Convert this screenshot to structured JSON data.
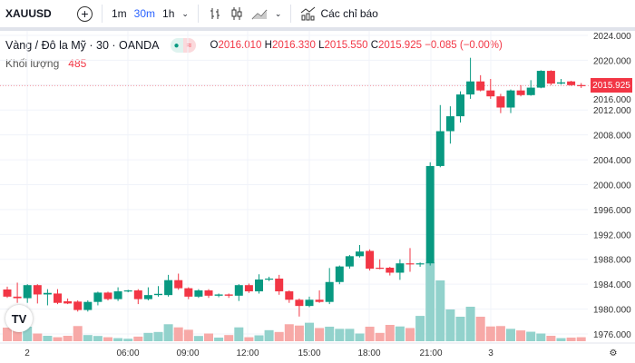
{
  "toolbar": {
    "symbol": "XAUUSD",
    "intervals": [
      "1m",
      "30m",
      "1h"
    ],
    "indicators_label": "Các chỉ báo"
  },
  "legend": {
    "title": "Vàng / Đô la Mỹ · 30 · OANDA",
    "open": "2016.010",
    "high": "2016.330",
    "low": "2015.550",
    "close": "2015.925",
    "change": "−0.085 (−0.00%)",
    "o": "O",
    "h": "H",
    "l": "L",
    "c": "C"
  },
  "volume": {
    "label": "Khối lượng",
    "value": "485"
  },
  "colors": {
    "up": "#089981",
    "down": "#f23645",
    "up_vol": "#92d2cc",
    "down_vol": "#f7a9a7"
  },
  "chart_data": {
    "type": "candlestick",
    "ylim": [
      1974,
      2026
    ],
    "y_ticks": [
      "2024.000",
      "2020.000",
      "2016.000",
      "2012.000",
      "2008.000",
      "2004.000",
      "2000.000",
      "1996.000",
      "1992.000",
      "1988.000",
      "1984.000",
      "1980.000",
      "1976.000"
    ],
    "x_ticks": [
      "2",
      "06:00",
      "09:00",
      "12:00",
      "15:00",
      "18:00",
      "21:00",
      "3"
    ],
    "last_price": "2015.925",
    "candles": [
      [
        1983.15,
        1983.6,
        1981.8,
        1982.0
      ],
      [
        1982.0,
        1984.25,
        1981.0,
        1981.75
      ],
      [
        1981.75,
        1984.0,
        1981.0,
        1983.85
      ],
      [
        1983.85,
        1984.0,
        1980.9,
        1982.35
      ],
      [
        1982.35,
        1983.2,
        1980.6,
        1982.6
      ],
      [
        1982.5,
        1983.2,
        1980.8,
        1981.0
      ],
      [
        1981.25,
        1981.7,
        1980.8,
        1980.9
      ],
      [
        1981.2,
        1981.4,
        1979.6,
        1979.85
      ],
      [
        1979.85,
        1981.4,
        1979.6,
        1981.15
      ],
      [
        1981.15,
        1982.8,
        1980.6,
        1982.65
      ],
      [
        1982.65,
        1982.8,
        1981.4,
        1981.6
      ],
      [
        1981.6,
        1983.5,
        1981.3,
        1982.85
      ],
      [
        1982.85,
        1983.1,
        1982.7,
        1983.0
      ],
      [
        1983.0,
        1983.2,
        1980.8,
        1981.6
      ],
      [
        1981.6,
        1983.5,
        1981.4,
        1982.25
      ],
      [
        1982.25,
        1983.7,
        1982.0,
        1982.45
      ],
      [
        1982.25,
        1985.5,
        1982.0,
        1984.65
      ],
      [
        1984.65,
        1985.7,
        1983.1,
        1983.35
      ],
      [
        1983.35,
        1983.5,
        1981.6,
        1982.0
      ],
      [
        1982.0,
        1983.2,
        1981.8,
        1983.0
      ],
      [
        1983.0,
        1983.2,
        1981.8,
        1982.15
      ],
      [
        1982.15,
        1982.5,
        1981.9,
        1982.35
      ],
      [
        1982.35,
        1982.5,
        1981.8,
        1982.15
      ],
      [
        1982.15,
        1984.0,
        1981.3,
        1983.85
      ],
      [
        1983.85,
        1984.1,
        1982.6,
        1982.85
      ],
      [
        1982.85,
        1985.6,
        1982.5,
        1984.75
      ],
      [
        1984.75,
        1985.2,
        1984.5,
        1984.9
      ],
      [
        1984.9,
        1985.5,
        1982.3,
        1982.85
      ],
      [
        1982.85,
        1983.0,
        1981.0,
        1981.5
      ],
      [
        1981.5,
        1981.7,
        1978.8,
        1980.5
      ],
      [
        1980.5,
        1982.0,
        1980.3,
        1981.5
      ],
      [
        1981.5,
        1983.0,
        1981.0,
        1981.15
      ],
      [
        1981.15,
        1986.6,
        1980.8,
        1984.35
      ],
      [
        1984.35,
        1987.0,
        1984.0,
        1986.85
      ],
      [
        1986.85,
        1988.7,
        1986.5,
        1988.5
      ],
      [
        1988.5,
        1990.3,
        1988.3,
        1989.25
      ],
      [
        1989.35,
        1989.6,
        1986.2,
        1986.5
      ],
      [
        1986.65,
        1988.0,
        1986.4,
        1986.5
      ],
      [
        1986.65,
        1986.8,
        1985.4,
        1985.85
      ],
      [
        1985.85,
        1988.0,
        1984.7,
        1987.35
      ],
      [
        1987.35,
        1989.8,
        1986.0,
        1987.2
      ],
      [
        1987.2,
        1987.5,
        1986.8,
        1987.35
      ],
      [
        1987.35,
        2003.6,
        1987.0,
        2003.0
      ],
      [
        2003.0,
        2012.8,
        2002.8,
        2008.6
      ],
      [
        2008.6,
        2012.6,
        2006.6,
        2011.0
      ],
      [
        2011.0,
        2015.0,
        2010.0,
        2014.5
      ],
      [
        2014.5,
        2020.4,
        2013.8,
        2016.6
      ],
      [
        2016.6,
        2017.6,
        2015.0,
        2015.15
      ],
      [
        2015.15,
        2017.0,
        2013.8,
        2014.2
      ],
      [
        2014.2,
        2014.6,
        2011.5,
        2012.4
      ],
      [
        2012.4,
        2015.3,
        2011.5,
        2015.15
      ],
      [
        2015.15,
        2016.0,
        2014.2,
        2014.4
      ],
      [
        2014.4,
        2016.8,
        2014.3,
        2015.6
      ],
      [
        2015.6,
        2018.4,
        2015.5,
        2018.3
      ],
      [
        2018.3,
        2018.4,
        2016.0,
        2016.25
      ],
      [
        2016.25,
        2017.0,
        2016.1,
        2016.45
      ],
      [
        2016.6,
        2016.7,
        2015.9,
        2016.0
      ],
      [
        2016.01,
        2016.33,
        2015.55,
        2015.925
      ]
    ],
    "volumes": [
      1650,
      1390,
      1760,
      935,
      660,
      485,
      660,
      1840,
      750,
      640,
      485,
      375,
      300,
      560,
      1010,
      1120,
      2060,
      1680,
      1390,
      640,
      935,
      440,
      750,
      1680,
      485,
      715,
      1340,
      1120,
      2060,
      1900,
      2240,
      1600,
      1760,
      1500,
      1500,
      935,
      1760,
      1010,
      1980,
      1790,
      1600,
      3070,
      9570,
      7370,
      3850,
      2970,
      4180,
      2970,
      1790,
      1840,
      1500,
      1310,
      1150,
      935,
      660,
      375,
      440,
      485
    ]
  }
}
